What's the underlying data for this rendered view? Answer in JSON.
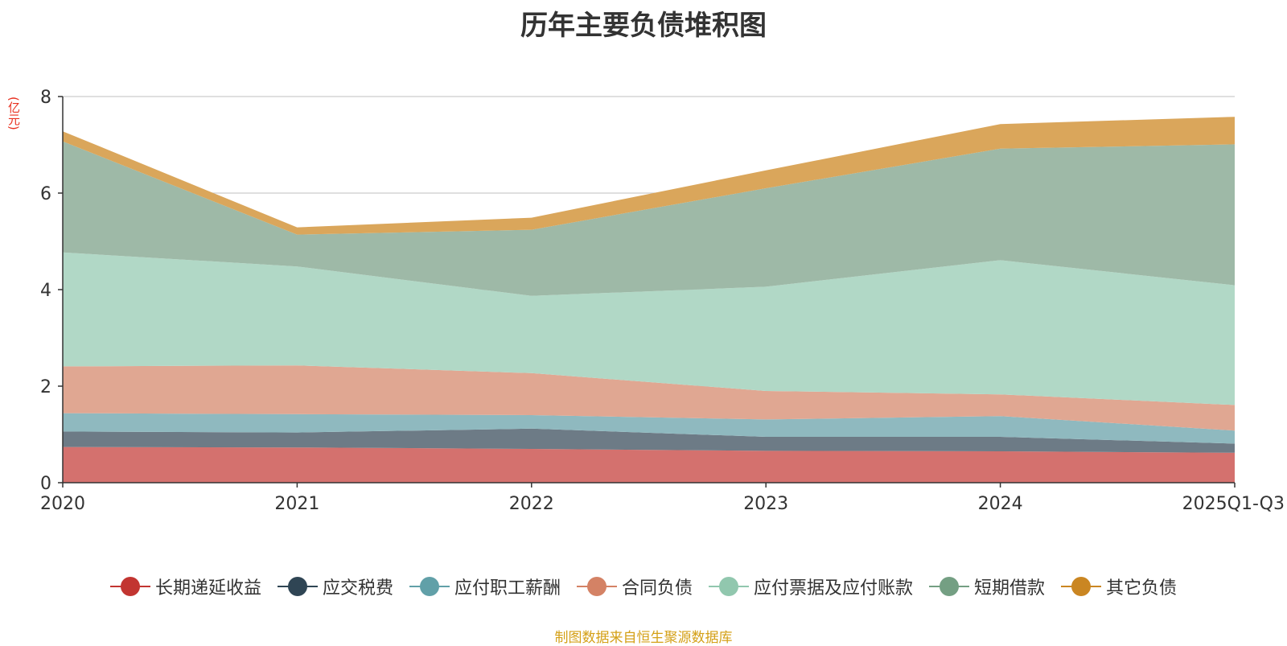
{
  "chart_data": {
    "type": "area",
    "stacked": true,
    "title": "历年主要负债堆积图",
    "ylabel": "(亿元)",
    "xlabel": "",
    "categories": [
      "2020",
      "2021",
      "2022",
      "2023",
      "2024",
      "2025Q1-Q3"
    ],
    "ylim": [
      0,
      8
    ],
    "yticks": [
      "0",
      "2",
      "4",
      "6",
      "8"
    ],
    "grid": true,
    "legend_position": "bottom",
    "series": [
      {
        "name": "长期递延收益",
        "color": "#c23531",
        "area_color": "#d4716e",
        "values": [
          0.74,
          0.73,
          0.7,
          0.66,
          0.65,
          0.62
        ]
      },
      {
        "name": "应交税费",
        "color": "#2f4554",
        "area_color": "#6d7b86",
        "values": [
          0.32,
          0.31,
          0.42,
          0.29,
          0.3,
          0.19
        ]
      },
      {
        "name": "应付职工薪酬",
        "color": "#61a0a8",
        "area_color": "#8fb9bf",
        "values": [
          0.38,
          0.38,
          0.28,
          0.36,
          0.43,
          0.27
        ]
      },
      {
        "name": "合同负债",
        "color": "#d48265",
        "area_color": "#e0a792",
        "values": [
          0.97,
          1.01,
          0.87,
          0.59,
          0.45,
          0.53
        ]
      },
      {
        "name": "应付票据及应付账款",
        "color": "#91c7ae",
        "area_color": "#b1d8c6",
        "values": [
          2.36,
          2.05,
          1.6,
          2.16,
          2.78,
          2.48
        ]
      },
      {
        "name": "短期借款",
        "color": "#749f83",
        "area_color": "#9eb9a7",
        "values": [
          2.3,
          0.66,
          1.37,
          2.04,
          2.31,
          2.92
        ]
      },
      {
        "name": "其它负债",
        "color": "#ca8622",
        "area_color": "#daa65b",
        "values": [
          0.21,
          0.15,
          0.25,
          0.37,
          0.51,
          0.57
        ]
      }
    ]
  },
  "source_note": "制图数据来自恒生聚源数据库"
}
